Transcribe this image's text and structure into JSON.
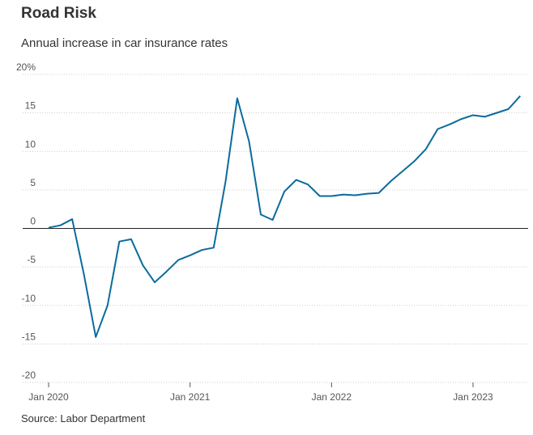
{
  "chart_data": {
    "type": "line",
    "title": "Road Risk",
    "subtitle": "Annual increase in car insurance rates",
    "source": "Source: Labor Department",
    "x": [
      "2020-01",
      "2020-02",
      "2020-03",
      "2020-04",
      "2020-05",
      "2020-06",
      "2020-07",
      "2020-08",
      "2020-09",
      "2020-10",
      "2020-11",
      "2020-12",
      "2021-01",
      "2021-02",
      "2021-03",
      "2021-04",
      "2021-05",
      "2021-06",
      "2021-07",
      "2021-08",
      "2021-09",
      "2021-10",
      "2021-11",
      "2021-12",
      "2022-01",
      "2022-02",
      "2022-03",
      "2022-04",
      "2022-05",
      "2022-06",
      "2022-07",
      "2022-08",
      "2022-09",
      "2022-10",
      "2022-11",
      "2022-12",
      "2023-01",
      "2023-02",
      "2023-03",
      "2023-04",
      "2023-05"
    ],
    "series": [
      {
        "color": "#0a6b9c",
        "values": [
          0.1,
          0.4,
          1.2,
          -6,
          -14.1,
          -10,
          -1.7,
          -1.4,
          -4.8,
          -7,
          -5.6,
          -4.1,
          -3.5,
          -2.8,
          -2.5,
          6,
          16.9,
          11.3,
          1.8,
          1.1,
          4.8,
          6.3,
          5.7,
          4.2,
          4.2,
          4.4,
          4.3,
          4.5,
          4.6,
          6.1,
          7.4,
          8.7,
          10.3,
          12.9,
          13.5,
          14.2,
          14.7,
          14.5,
          15.0,
          15.5,
          17.2
        ]
      }
    ],
    "xticks": [
      {
        "value": "2020-01",
        "label": "Jan 2020"
      },
      {
        "value": "2021-01",
        "label": "Jan 2021"
      },
      {
        "value": "2022-01",
        "label": "Jan 2022"
      },
      {
        "value": "2023-01",
        "label": "Jan 2023"
      }
    ],
    "ylim": [
      -20,
      20
    ],
    "yticks": [
      {
        "value": 20,
        "label": "20%"
      },
      15,
      10,
      5,
      0,
      -5,
      -10,
      -15,
      -20
    ],
    "grid": true
  }
}
